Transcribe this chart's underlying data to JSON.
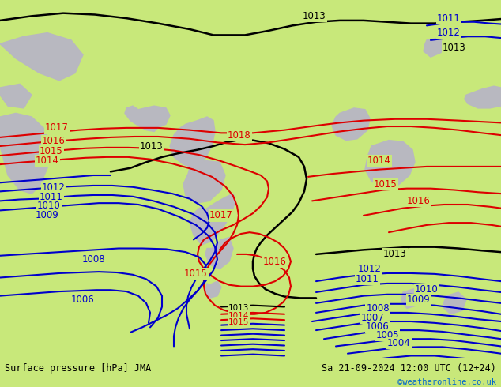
{
  "title_left": "Surface pressure [hPa] JMA",
  "title_right": "Sa 21-09-2024 12:00 UTC (12+24)",
  "credit": "©weatheronline.co.uk",
  "bg_color": "#c8e87a",
  "land_color": "#b8b8c0",
  "text_color_black": "#000000",
  "text_color_red": "#dd0000",
  "text_color_blue": "#0000cc",
  "text_color_credit": "#0066cc",
  "bottom_bar_color": "#ffffff",
  "figsize": [
    6.34,
    4.9
  ],
  "dpi": 100
}
